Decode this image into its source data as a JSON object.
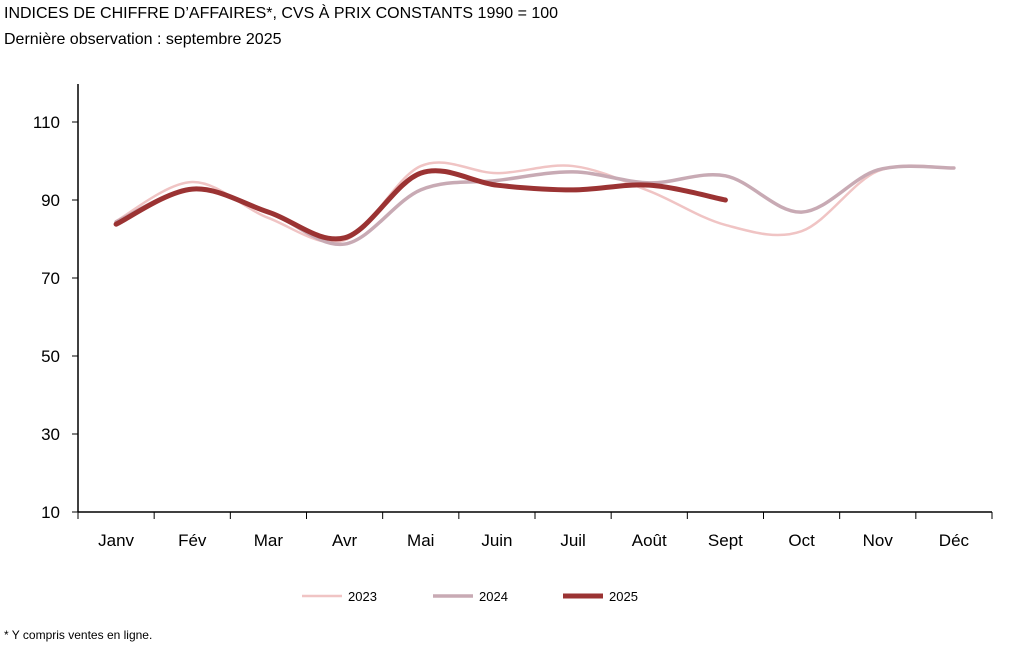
{
  "title": "INDICES DE CHIFFRE D’AFFAIRES*, CVS À PRIX CONSTANTS 1990 = 100",
  "subtitle": "Dernière observation : septembre 2025",
  "footnote": "* Y compris ventes en ligne.",
  "chart_data": {
    "type": "line",
    "title": "INDICES DE CHIFFRE D’AFFAIRES*, CVS À PRIX CONSTANTS 1990 = 100",
    "categories": [
      "Janv",
      "Fév",
      "Mar",
      "Avr",
      "Mai",
      "Juin",
      "Juil",
      "Août",
      "Sept",
      "Oct",
      "Nov",
      "Déc"
    ],
    "yticks": [
      10,
      30,
      50,
      70,
      90,
      110
    ],
    "ylim": [
      10,
      120
    ],
    "grid": false,
    "legend": "bottom",
    "series": [
      {
        "name": "2023",
        "color": "#f0c4c4",
        "width": 2.5,
        "values": [
          84.6,
          94.6,
          85.4,
          79.7,
          98.7,
          96.9,
          98.7,
          92.3,
          83.6,
          82.0,
          97.4,
          98.2
        ]
      },
      {
        "name": "2024",
        "color": "#c8aab4",
        "width": 3.5,
        "values": [
          84.4,
          92.8,
          87.0,
          78.7,
          92.6,
          95.0,
          97.2,
          94.4,
          96.2,
          86.9,
          97.7,
          98.2
        ]
      },
      {
        "name": "2025",
        "color": "#9b3333",
        "width": 5,
        "values": [
          83.8,
          92.8,
          86.9,
          80.3,
          96.9,
          93.8,
          92.6,
          93.8,
          90.0,
          null,
          null,
          null
        ]
      }
    ]
  }
}
